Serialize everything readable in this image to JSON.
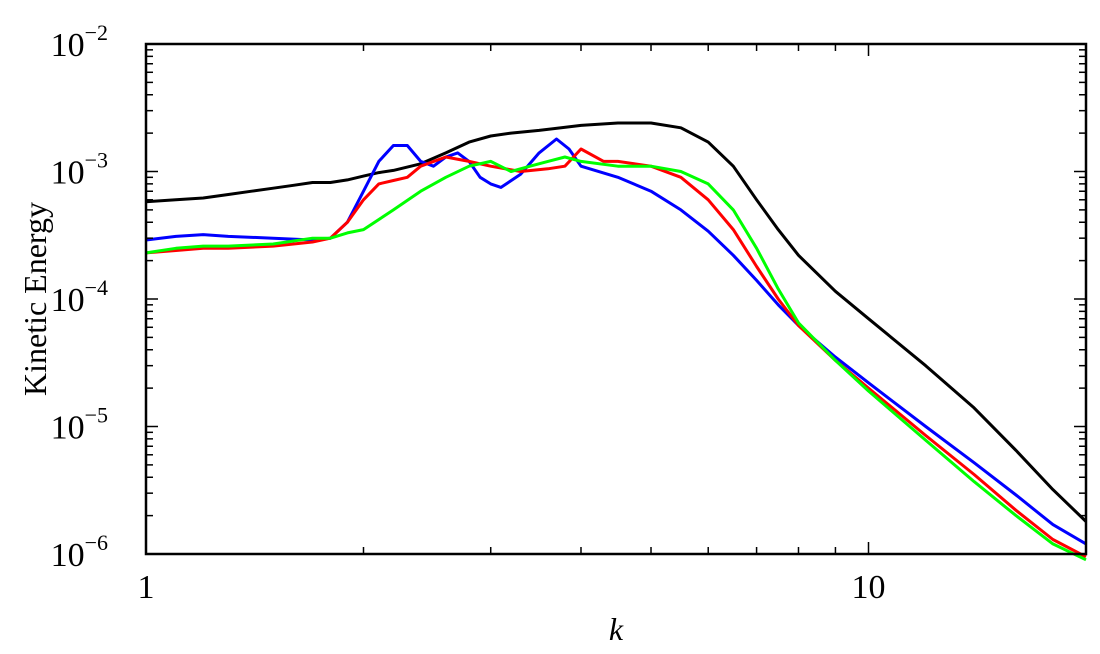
{
  "chart_data": {
    "type": "line",
    "title": "",
    "xlabel": "k",
    "ylabel": "Kinetic Energy",
    "x_scale": "log",
    "y_scale": "log",
    "xlim": [
      1,
      20
    ],
    "ylim": [
      1e-06,
      0.01
    ],
    "grid": false,
    "x_ticks": [
      {
        "value": 1,
        "label": "1"
      },
      {
        "value": 10,
        "label": "10"
      }
    ],
    "y_ticks": [
      {
        "value": 1e-06,
        "base": "10",
        "exp": "−6"
      },
      {
        "value": 1e-05,
        "base": "10",
        "exp": "−5"
      },
      {
        "value": 0.0001,
        "base": "10",
        "exp": "−4"
      },
      {
        "value": 0.001,
        "base": "10",
        "exp": "−3"
      },
      {
        "value": 0.01,
        "base": "10",
        "exp": "−2"
      }
    ],
    "series": [
      {
        "color": "#000000",
        "points": [
          [
            1,
            0.00058
          ],
          [
            1.1,
            0.0006
          ],
          [
            1.2,
            0.00062
          ],
          [
            1.3,
            0.00066
          ],
          [
            1.4,
            0.0007
          ],
          [
            1.5,
            0.00074
          ],
          [
            1.6,
            0.00078
          ],
          [
            1.7,
            0.00082
          ],
          [
            1.8,
            0.00082
          ],
          [
            1.9,
            0.00086
          ],
          [
            2.0,
            0.00092
          ],
          [
            2.1,
            0.00098
          ],
          [
            2.2,
            0.00102
          ],
          [
            2.4,
            0.00115
          ],
          [
            2.6,
            0.0014
          ],
          [
            2.8,
            0.0017
          ],
          [
            3.0,
            0.0019
          ],
          [
            3.2,
            0.002
          ],
          [
            3.5,
            0.0021
          ],
          [
            4.0,
            0.0023
          ],
          [
            4.5,
            0.0024
          ],
          [
            5.0,
            0.0024
          ],
          [
            5.5,
            0.0022
          ],
          [
            6.0,
            0.0017
          ],
          [
            6.5,
            0.0011
          ],
          [
            7.0,
            0.0006
          ],
          [
            7.5,
            0.00035
          ],
          [
            8.0,
            0.00022
          ],
          [
            9.0,
            0.000115
          ],
          [
            10.0,
            7e-05
          ],
          [
            12.0,
            3e-05
          ],
          [
            14.0,
            1.4e-05
          ],
          [
            16.0,
            6.5e-06
          ],
          [
            18.0,
            3.2e-06
          ],
          [
            20.0,
            1.8e-06
          ]
        ]
      },
      {
        "color": "#0000ff",
        "points": [
          [
            1,
            0.00029
          ],
          [
            1.1,
            0.00031
          ],
          [
            1.2,
            0.00032
          ],
          [
            1.3,
            0.00031
          ],
          [
            1.5,
            0.0003
          ],
          [
            1.7,
            0.00029
          ],
          [
            1.8,
            0.0003
          ],
          [
            1.9,
            0.0004
          ],
          [
            2.0,
            0.0007
          ],
          [
            2.1,
            0.0012
          ],
          [
            2.2,
            0.0016
          ],
          [
            2.3,
            0.0016
          ],
          [
            2.4,
            0.0012
          ],
          [
            2.5,
            0.0011
          ],
          [
            2.6,
            0.0013
          ],
          [
            2.7,
            0.0014
          ],
          [
            2.8,
            0.0012
          ],
          [
            2.9,
            0.0009
          ],
          [
            3.0,
            0.0008
          ],
          [
            3.1,
            0.00075
          ],
          [
            3.3,
            0.00095
          ],
          [
            3.5,
            0.0014
          ],
          [
            3.7,
            0.0018
          ],
          [
            3.85,
            0.0015
          ],
          [
            4.0,
            0.0011
          ],
          [
            4.5,
            0.0009
          ],
          [
            5.0,
            0.0007
          ],
          [
            5.5,
            0.0005
          ],
          [
            6.0,
            0.00034
          ],
          [
            6.5,
            0.00022
          ],
          [
            7.0,
            0.00014
          ],
          [
            7.5,
            9e-05
          ],
          [
            8.0,
            6.2e-05
          ],
          [
            9.0,
            3.5e-05
          ],
          [
            10.0,
            2.2e-05
          ],
          [
            12.0,
            1e-05
          ],
          [
            14.0,
            5.2e-06
          ],
          [
            16.0,
            2.9e-06
          ],
          [
            18.0,
            1.7e-06
          ],
          [
            20.0,
            1.2e-06
          ]
        ]
      },
      {
        "color": "#ff0000",
        "points": [
          [
            1,
            0.00023
          ],
          [
            1.1,
            0.00024
          ],
          [
            1.2,
            0.00025
          ],
          [
            1.3,
            0.00025
          ],
          [
            1.5,
            0.00026
          ],
          [
            1.7,
            0.00028
          ],
          [
            1.8,
            0.0003
          ],
          [
            1.9,
            0.0004
          ],
          [
            2.0,
            0.0006
          ],
          [
            2.1,
            0.0008
          ],
          [
            2.2,
            0.00085
          ],
          [
            2.3,
            0.0009
          ],
          [
            2.4,
            0.0011
          ],
          [
            2.6,
            0.0013
          ],
          [
            2.8,
            0.0012
          ],
          [
            3.0,
            0.0011
          ],
          [
            3.3,
            0.001
          ],
          [
            3.6,
            0.00105
          ],
          [
            3.8,
            0.0011
          ],
          [
            4.0,
            0.0015
          ],
          [
            4.3,
            0.0012
          ],
          [
            4.5,
            0.0012
          ],
          [
            5.0,
            0.0011
          ],
          [
            5.5,
            0.0009
          ],
          [
            6.0,
            0.0006
          ],
          [
            6.5,
            0.00035
          ],
          [
            7.0,
            0.00018
          ],
          [
            7.5,
            0.0001
          ],
          [
            8.0,
            6.2e-05
          ],
          [
            9.0,
            3.3e-05
          ],
          [
            10.0,
            2e-05
          ],
          [
            12.0,
            8.5e-06
          ],
          [
            14.0,
            4.2e-06
          ],
          [
            16.0,
            2.2e-06
          ],
          [
            18.0,
            1.3e-06
          ],
          [
            20.0,
            9.5e-07
          ]
        ]
      },
      {
        "color": "#00ff00",
        "points": [
          [
            1,
            0.00023
          ],
          [
            1.1,
            0.00025
          ],
          [
            1.2,
            0.00026
          ],
          [
            1.3,
            0.00026
          ],
          [
            1.5,
            0.00027
          ],
          [
            1.7,
            0.0003
          ],
          [
            1.8,
            0.0003
          ],
          [
            1.9,
            0.00033
          ],
          [
            2.0,
            0.00035
          ],
          [
            2.2,
            0.0005
          ],
          [
            2.4,
            0.0007
          ],
          [
            2.6,
            0.0009
          ],
          [
            2.8,
            0.0011
          ],
          [
            3.0,
            0.0012
          ],
          [
            3.2,
            0.001
          ],
          [
            3.4,
            0.0011
          ],
          [
            3.6,
            0.0012
          ],
          [
            3.8,
            0.0013
          ],
          [
            4.0,
            0.0012
          ],
          [
            4.5,
            0.0011
          ],
          [
            5.0,
            0.0011
          ],
          [
            5.5,
            0.001
          ],
          [
            6.0,
            0.0008
          ],
          [
            6.5,
            0.0005
          ],
          [
            7.0,
            0.00025
          ],
          [
            7.5,
            0.00012
          ],
          [
            8.0,
            6.5e-05
          ],
          [
            9.0,
            3.3e-05
          ],
          [
            10.0,
            1.9e-05
          ],
          [
            12.0,
            7.8e-06
          ],
          [
            14.0,
            3.7e-06
          ],
          [
            16.0,
            2e-06
          ],
          [
            18.0,
            1.2e-06
          ],
          [
            20.0,
            9e-07
          ]
        ]
      }
    ]
  }
}
